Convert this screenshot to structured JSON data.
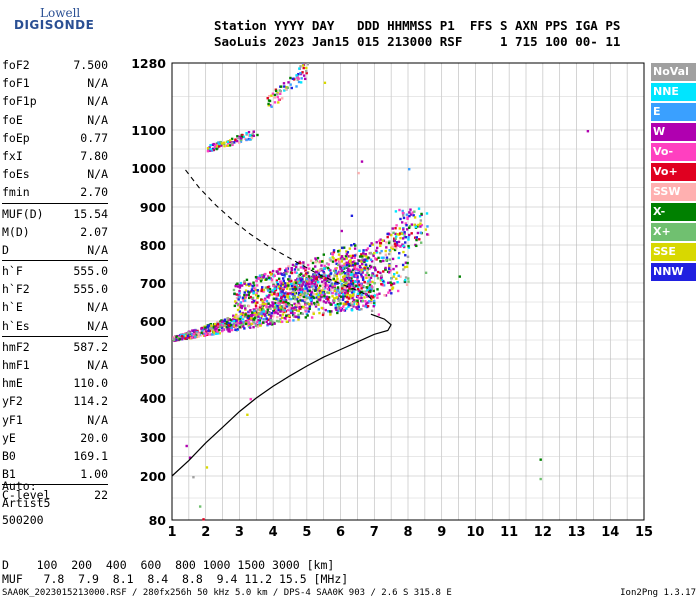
{
  "logo": {
    "line1": "Lowell",
    "line2": "DIGISONDE"
  },
  "header": {
    "row1": "Station YYYY DAY   DDD HHMMSS P1  FFS S AXN PPS IGA PS",
    "row2": "SaoLuis 2023 Jan15 015 213000 RSF     1 715 100 00- 11"
  },
  "params": {
    "group1": [
      {
        "label": "foF2",
        "value": "7.500"
      },
      {
        "label": "foF1",
        "value": "N/A"
      },
      {
        "label": "foF1p",
        "value": "N/A"
      },
      {
        "label": "foE",
        "value": "N/A"
      },
      {
        "label": "foEp",
        "value": "0.77"
      },
      {
        "label": "fxI",
        "value": "7.80"
      },
      {
        "label": "foEs",
        "value": "N/A"
      },
      {
        "label": "fmin",
        "value": "2.70"
      }
    ],
    "group2": [
      {
        "label": "MUF(D)",
        "value": "15.54"
      },
      {
        "label": "M(D)",
        "value": "2.07"
      },
      {
        "label": "D",
        "value": "N/A"
      }
    ],
    "group3": [
      {
        "label": "h`F",
        "value": "555.0"
      },
      {
        "label": "h`F2",
        "value": "555.0"
      },
      {
        "label": "h`E",
        "value": "N/A"
      },
      {
        "label": "h`Es",
        "value": "N/A"
      }
    ],
    "group4": [
      {
        "label": "hmF2",
        "value": "587.2"
      },
      {
        "label": "hmF1",
        "value": "N/A"
      },
      {
        "label": "hmE",
        "value": "110.0"
      },
      {
        "label": "yF2",
        "value": "114.2"
      },
      {
        "label": "yF1",
        "value": "N/A"
      },
      {
        "label": "yE",
        "value": "20.0"
      },
      {
        "label": "B0",
        "value": "169.1"
      },
      {
        "label": "B1",
        "value": "1.00"
      }
    ],
    "group5": [
      {
        "label": "C-level",
        "value": "22"
      }
    ]
  },
  "auto": {
    "line1": "Auto:",
    "line2": "Artist5",
    "line3": "500200"
  },
  "footer": {
    "d_row": "D    100  200  400  600  800 1000 1500 3000 [km]",
    "muf_row": "MUF   7.8  7.9  8.1  8.4  8.8  9.4 11.2 15.5 [MHz]",
    "info": "SAA0K_2023015213000.RSF / 280fx256h 50 kHz 5.0 km / DPS-4 SAA0K 903 / 2.6 S 315.8 E",
    "version": "Ion2Png 1.3.17"
  },
  "legend": [
    {
      "label": "NoVal",
      "color": "#a0a0a0"
    },
    {
      "label": "NNE",
      "color": "#00e5ff"
    },
    {
      "label": "E",
      "color": "#3aa0ff"
    },
    {
      "label": "W",
      "color": "#b000b0"
    },
    {
      "label": "Vo-",
      "color": "#ff40c0"
    },
    {
      "label": "Vo+",
      "color": "#e00020"
    },
    {
      "label": "SSW",
      "color": "#ffb0b0"
    },
    {
      "label": "X-",
      "color": "#008000"
    },
    {
      "label": "X+",
      "color": "#70c070"
    },
    {
      "label": "SSE",
      "color": "#d8d800"
    },
    {
      "label": "NNW",
      "color": "#2020e0"
    }
  ],
  "chart_data": {
    "type": "scatter",
    "xlabel": "",
    "ylabel": "",
    "xlim": [
      1,
      15
    ],
    "ylim": [
      80,
      1280
    ],
    "x_ticks": [
      1,
      2,
      3,
      4,
      5,
      6,
      7,
      8,
      9,
      10,
      11,
      12,
      13,
      14,
      15
    ],
    "y_ticks": [
      80,
      200,
      300,
      400,
      500,
      600,
      700,
      800,
      900,
      1000,
      1100,
      1280
    ],
    "grid": true,
    "legend_position": "right",
    "series": [
      {
        "values": [
          [
            1.0,
            200
          ],
          [
            1.5,
            240
          ],
          [
            2.0,
            285
          ],
          [
            2.5,
            325
          ],
          [
            3.0,
            365
          ],
          [
            3.5,
            400
          ],
          [
            4.0,
            430
          ],
          [
            4.5,
            457
          ],
          [
            5.0,
            482
          ],
          [
            5.5,
            505
          ],
          [
            6.0,
            525
          ],
          [
            6.5,
            545
          ],
          [
            7.0,
            565
          ],
          [
            7.4,
            575
          ],
          [
            7.5,
            590
          ],
          [
            7.3,
            605
          ],
          [
            6.9,
            618
          ]
        ]
      },
      {
        "values": [
          [
            1.4,
            995
          ],
          [
            1.8,
            950
          ],
          [
            2.3,
            905
          ],
          [
            2.8,
            865
          ],
          [
            3.3,
            830
          ],
          [
            3.8,
            800
          ],
          [
            4.3,
            775
          ],
          [
            4.8,
            750
          ],
          [
            5.3,
            725
          ],
          [
            5.8,
            705
          ],
          [
            6.3,
            688
          ],
          [
            6.8,
            668
          ],
          [
            7.0,
            650
          ]
        ]
      }
    ]
  }
}
